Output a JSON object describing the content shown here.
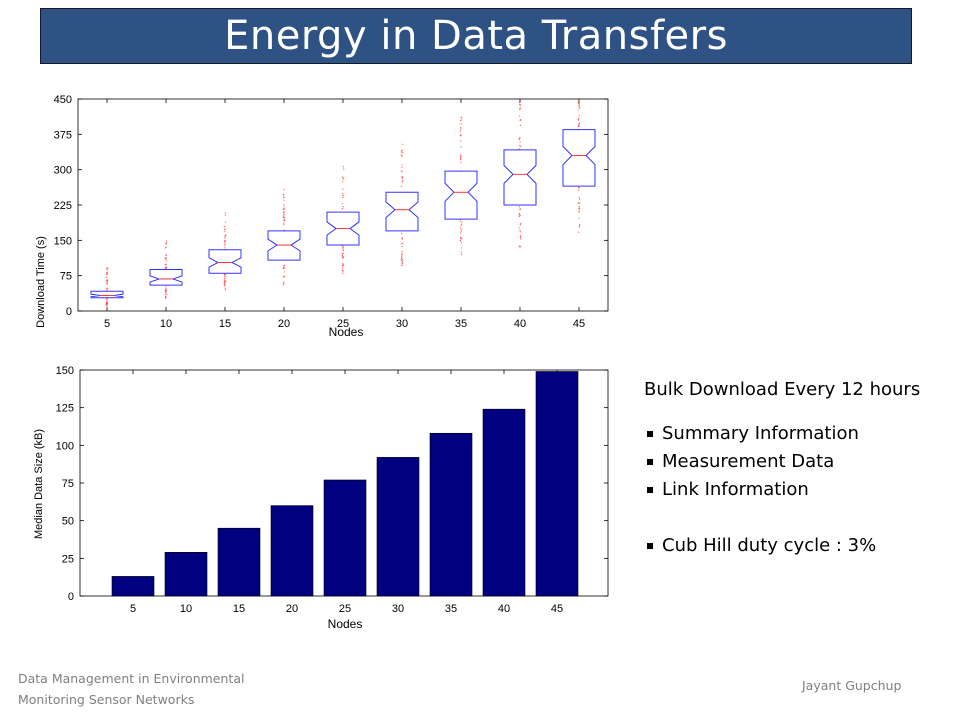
{
  "slide": {
    "title": "Energy in Data Transfers",
    "footer_left_line1": "Data Management in Environmental",
    "footer_left_line2": "Monitoring Sensor Networks",
    "footer_right": "Jayant Gupchup",
    "banner_color": "#2e5283"
  },
  "notes": {
    "heading": "Bulk Download Every 12 hours",
    "bullets": [
      "Summary Information",
      "Measurement Data",
      "Link Information"
    ],
    "extra_bullet": "Cub Hill duty cycle : 3%"
  },
  "chart_data": [
    {
      "type": "boxplot",
      "xlabel": "Nodes",
      "ylabel": "Download Time (s)",
      "ylim": [
        0,
        450
      ],
      "yticks": [
        0,
        75,
        150,
        225,
        300,
        375,
        450
      ],
      "categories": [
        "5",
        "10",
        "15",
        "20",
        "25",
        "30",
        "35",
        "40",
        "45"
      ],
      "q1": [
        28,
        55,
        80,
        108,
        140,
        170,
        195,
        225,
        265
      ],
      "median": [
        33,
        68,
        103,
        140,
        175,
        215,
        252,
        290,
        330
      ],
      "q3": [
        42,
        88,
        130,
        170,
        210,
        252,
        297,
        342,
        385
      ],
      "whisker_low": [
        10,
        25,
        40,
        55,
        80,
        95,
        115,
        135,
        160
      ],
      "whisker_high": [
        95,
        150,
        210,
        260,
        320,
        360,
        420,
        450,
        450
      ],
      "box_color": "#3333ff",
      "median_color": "#ff3333",
      "outlier_color": "#ff4444"
    },
    {
      "type": "bar",
      "xlabel": "Nodes",
      "ylabel": "Median Data Size (kB)",
      "ylim": [
        0,
        150
      ],
      "yticks": [
        0,
        25,
        50,
        75,
        100,
        125,
        150
      ],
      "categories": [
        "5",
        "10",
        "15",
        "20",
        "25",
        "30",
        "35",
        "40",
        "45"
      ],
      "values": [
        13,
        29,
        45,
        60,
        77,
        92,
        108,
        124,
        149
      ],
      "bar_color": "#000080"
    }
  ]
}
